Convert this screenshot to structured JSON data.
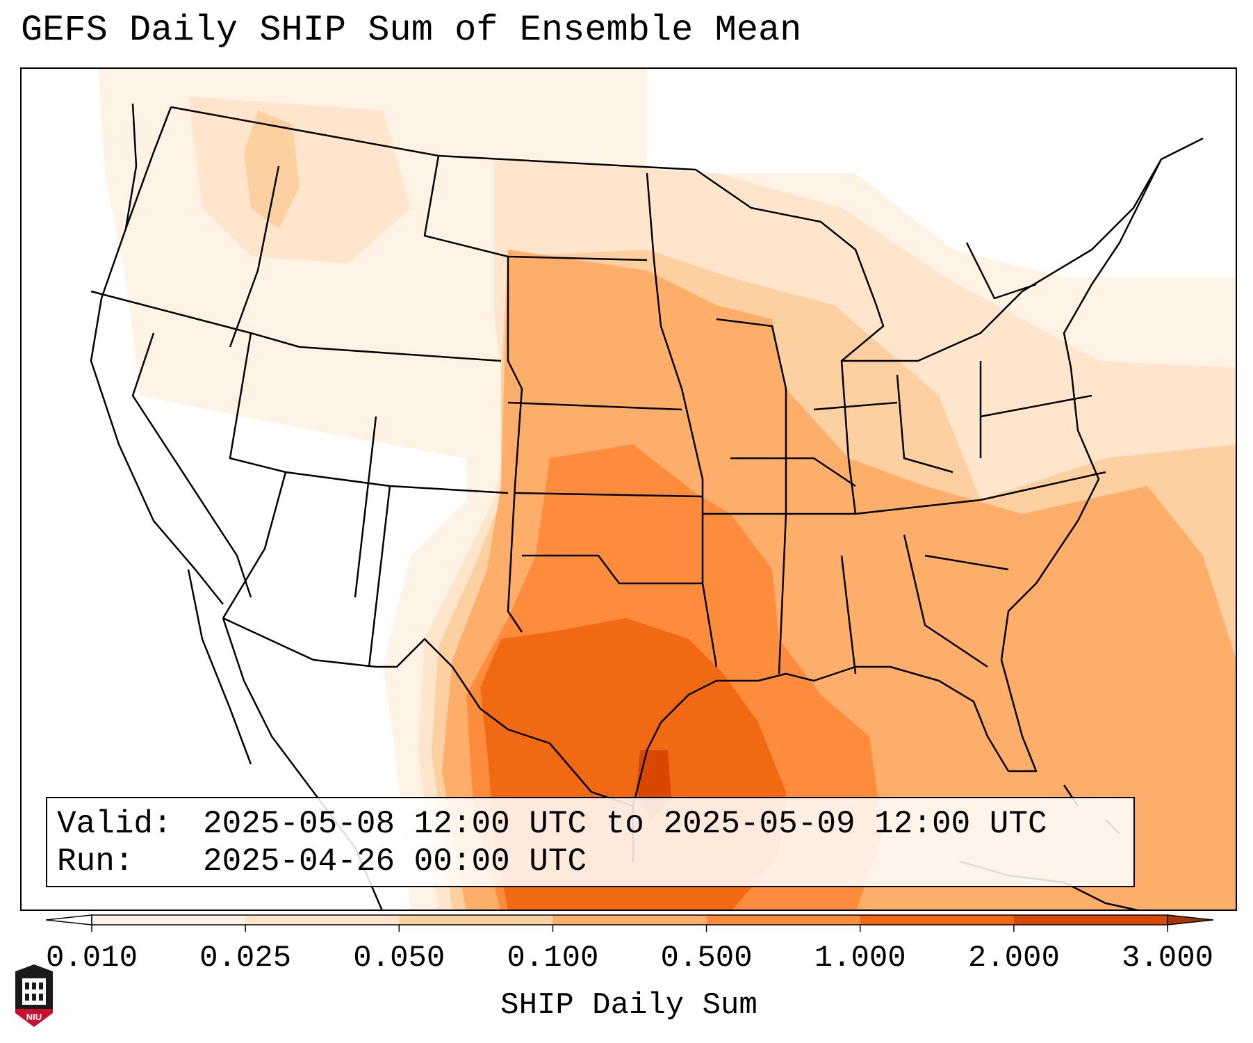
{
  "title": "GEFS Daily SHIP Sum of Ensemble Mean",
  "info": {
    "valid_label": "Valid:",
    "valid_value": "2025-05-08 12:00 UTC to 2025-05-09 12:00 UTC",
    "run_label": "Run:",
    "run_value": "2025-04-26 00:00 UTC"
  },
  "colorbar": {
    "label": "SHIP Daily Sum",
    "ticks": [
      "0.010",
      "0.025",
      "0.050",
      "0.100",
      "0.500",
      "1.000",
      "2.000",
      "3.000"
    ],
    "colors": [
      "#fff3e6",
      "#fee5cc",
      "#fdd0a2",
      "#fdae6b",
      "#fd8d3c",
      "#f16913",
      "#d94801",
      "#a63603"
    ],
    "extend": "both"
  },
  "map": {
    "region": "Continental United States, northern Mexico, Gulf of Mexico",
    "boundaries": "state and national borders",
    "max_value_area": "Texas coast / western Gulf of Mexico (2.000–3.000)"
  },
  "logo": {
    "text": "NIU"
  }
}
